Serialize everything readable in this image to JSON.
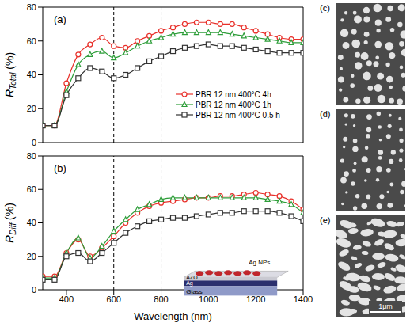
{
  "chart_data": [
    {
      "type": "line",
      "panel": "(a)",
      "ylabel": [
        "R",
        "Total",
        " (%)"
      ],
      "xlim": [
        300,
        1400
      ],
      "xticks": [
        400,
        600,
        800,
        1000,
        1200,
        1400
      ],
      "ylim": [
        0,
        80
      ],
      "yticks": [
        0,
        20,
        40,
        60,
        80
      ],
      "grid": false,
      "tick_labels": "y",
      "legend": "lower right",
      "vlines": [
        600,
        800
      ],
      "x": [
        300,
        350,
        400,
        450,
        500,
        550,
        600,
        650,
        700,
        750,
        800,
        850,
        900,
        950,
        1000,
        1050,
        1100,
        1150,
        1200,
        1250,
        1300,
        1350,
        1400
      ],
      "series": [
        {
          "name": "PBR 12 nm 400°C 4h",
          "color": "#e8302a",
          "marker": "circle",
          "values": [
            10,
            10,
            35,
            52,
            58,
            62,
            57,
            56,
            60,
            63,
            66,
            68,
            70,
            71,
            71,
            70,
            70,
            68,
            66,
            64,
            62,
            61,
            61
          ]
        },
        {
          "name": "PBR 12 nm 400°C 1h",
          "color": "#2e9e3a",
          "marker": "triangle",
          "values": [
            10,
            10,
            30,
            46,
            52,
            54,
            50,
            53,
            57,
            60,
            62,
            64,
            65,
            65,
            65,
            65,
            64,
            63,
            62,
            61,
            60,
            59,
            59
          ]
        },
        {
          "name": "PBR 12 nm 400°C 0.5 h",
          "color": "#333333",
          "marker": "square",
          "values": [
            10,
            10,
            28,
            38,
            44,
            42,
            38,
            40,
            44,
            48,
            51,
            54,
            56,
            57,
            58,
            57,
            57,
            56,
            55,
            54,
            53,
            53,
            53
          ]
        }
      ]
    },
    {
      "type": "line",
      "panel": "(b)",
      "ylabel": [
        "R",
        "Diff",
        " (%)"
      ],
      "xlabel": "Wavelength (nm)",
      "xlim": [
        300,
        1400
      ],
      "xticks": [
        400,
        600,
        800,
        1000,
        1200,
        1400
      ],
      "ylim": [
        0,
        80
      ],
      "yticks": [
        0,
        20,
        40,
        60,
        80
      ],
      "grid": false,
      "vlines": [
        600,
        800
      ],
      "inset": {
        "labels": [
          "Ag NPs",
          "AZO",
          "Ag",
          "Glass"
        ]
      },
      "x": [
        300,
        350,
        400,
        450,
        500,
        550,
        600,
        650,
        700,
        750,
        800,
        850,
        900,
        950,
        1000,
        1050,
        1100,
        1150,
        1200,
        1250,
        1300,
        1350,
        1400
      ],
      "series": [
        {
          "color": "#e8302a",
          "marker": "circle",
          "values": [
            8,
            8,
            22,
            30,
            20,
            25,
            32,
            40,
            46,
            50,
            52,
            53,
            54,
            55,
            55,
            56,
            56,
            57,
            58,
            57,
            56,
            53,
            48
          ]
        },
        {
          "color": "#2e9e3a",
          "marker": "triangle",
          "values": [
            7,
            7,
            22,
            31,
            19,
            26,
            35,
            42,
            48,
            51,
            54,
            55,
            55,
            55,
            55,
            55,
            55,
            55,
            55,
            54,
            53,
            51,
            46
          ]
        },
        {
          "color": "#333333",
          "marker": "square",
          "values": [
            6,
            6,
            20,
            22,
            17,
            22,
            28,
            34,
            38,
            41,
            42,
            43,
            43,
            44,
            45,
            46,
            46,
            47,
            47,
            47,
            46,
            44,
            41
          ]
        }
      ]
    }
  ],
  "images": [
    {
      "label": "(c)"
    },
    {
      "label": "(d)"
    },
    {
      "label": "(e)",
      "scale_bar": "1μm"
    }
  ]
}
